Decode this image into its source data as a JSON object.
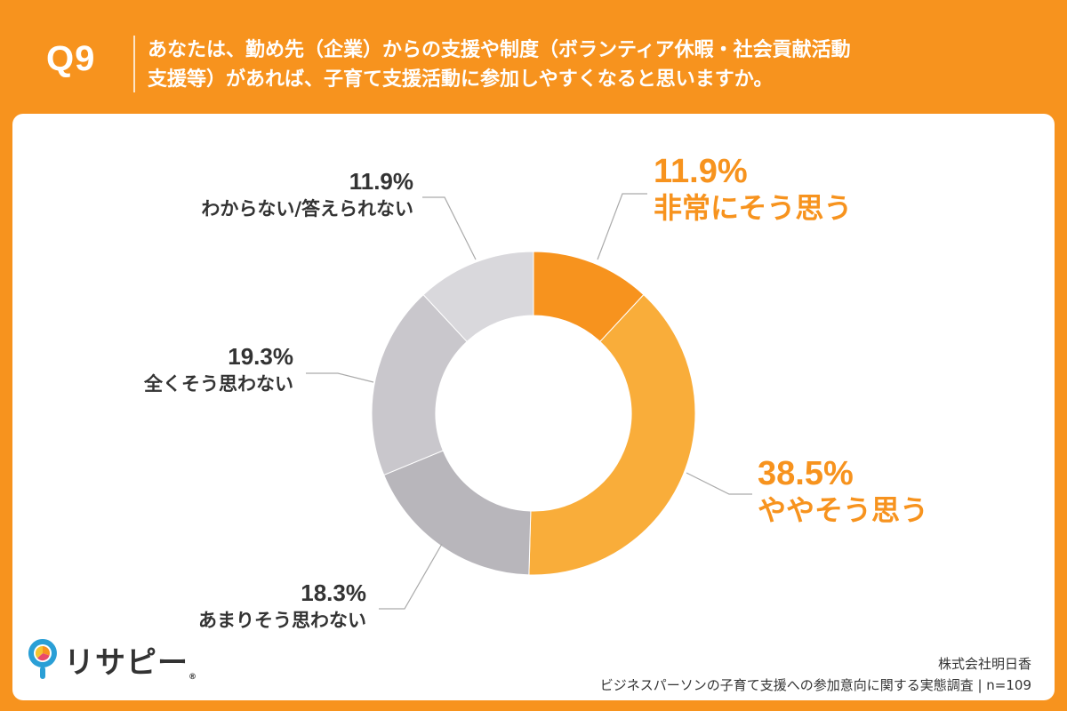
{
  "header": {
    "question_number": "Q9",
    "question_line1": "あなたは、勤め先（企業）からの支援や制度（ボランティア休暇・社会貢献活動",
    "question_line2": "支援等）があれば、子育て支援活動に参加しやすくなると思いますか。"
  },
  "colors": {
    "brand_orange": "#f7931e",
    "slice_strong_agree": "#f7931e",
    "slice_agree": "#f9ad3a",
    "slice_disagree": "#b8b6bb",
    "slice_strong_disagree": "#c9c7cc",
    "slice_unknown": "#d9d8dc",
    "label_dark": "#333333"
  },
  "chart_data": {
    "type": "pie",
    "donut": true,
    "slices": [
      {
        "label": "非常にそう思う",
        "value": 11.9,
        "value_label": "11.9%",
        "color": "#f7931e",
        "label_color": "#f7931e"
      },
      {
        "label": "ややそう思う",
        "value": 38.5,
        "value_label": "38.5%",
        "color": "#f9ad3a",
        "label_color": "#f7931e"
      },
      {
        "label": "あまりそう思わない",
        "value": 18.3,
        "value_label": "18.3%",
        "color": "#b8b6bb",
        "label_color": "#333333"
      },
      {
        "label": "全くそう思わない",
        "value": 19.3,
        "value_label": "19.3%",
        "color": "#c9c7cc",
        "label_color": "#333333"
      },
      {
        "label": "わからない/答えられない",
        "value": 11.9,
        "value_label": "11.9%",
        "color": "#d9d8dc",
        "label_color": "#333333"
      }
    ],
    "start": "12 o'clock",
    "direction": "clockwise"
  },
  "footer": {
    "logo_text": "リサピー",
    "logo_mark": "®",
    "company": "株式会社明日香",
    "survey": "ビジネスパーソンの子育て支援への参加意向に関する実態調査 | n=109"
  }
}
